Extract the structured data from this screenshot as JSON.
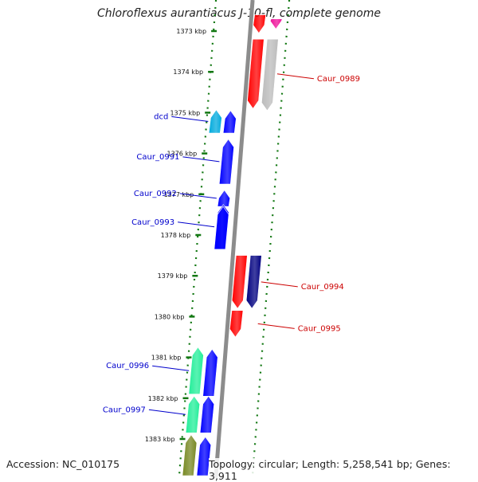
{
  "title": "Chloroflexus aurantiacus J-10-fl, complete genome",
  "footer": {
    "accession": "Accession: NC_010175",
    "stats": "Topology: circular; Length: 5,258,541 bp; Genes: 3,911"
  },
  "colors": {
    "tick": "#117711",
    "ring": "#8c8c8c",
    "label_forward": "#0000cc",
    "label_reverse": "#cc0000"
  },
  "ticks": [
    {
      "label": "1373 kbp",
      "kbp": 1373
    },
    {
      "label": "1374 kbp",
      "kbp": 1374
    },
    {
      "label": "1375 kbp",
      "kbp": 1375
    },
    {
      "label": "1376 kbp",
      "kbp": 1376
    },
    {
      "label": "1377 kbp",
      "kbp": 1377
    },
    {
      "label": "1378 kbp",
      "kbp": 1378
    },
    {
      "label": "1379 kbp",
      "kbp": 1379
    },
    {
      "label": "1380 kbp",
      "kbp": 1380
    },
    {
      "label": "1381 kbp",
      "kbp": 1381
    },
    {
      "label": "1382 kbp",
      "kbp": 1382
    },
    {
      "label": "1383 kbp",
      "kbp": 1383
    }
  ],
  "genes": [
    {
      "name": "",
      "strand": "reverse",
      "color": "#ff0000",
      "start_kbp": 1372.6,
      "end_kbp": 1373.05
    },
    {
      "name": "",
      "strand": "reverse",
      "color": "#ee1199",
      "start_kbp": 1372.7,
      "end_kbp": 1372.95
    },
    {
      "name": "Caur_0989",
      "strand": "reverse",
      "color": "#ff0000",
      "start_kbp": 1373.2,
      "end_kbp": 1374.9
    },
    {
      "name": "",
      "strand": "reverse",
      "color": "#bbbbbb",
      "start_kbp": 1373.2,
      "end_kbp": 1374.95
    },
    {
      "name": "dcd",
      "strand": "forward",
      "color": "#00aadd",
      "start_kbp": 1374.93,
      "end_kbp": 1375.5
    },
    {
      "name": "",
      "strand": "forward",
      "color": "#0000ff",
      "start_kbp": 1374.95,
      "end_kbp": 1375.5
    },
    {
      "name": "Caur_0991",
      "strand": "forward",
      "color": "#0000ff",
      "start_kbp": 1375.65,
      "end_kbp": 1376.75
    },
    {
      "name": "Caur_0992",
      "strand": "forward",
      "color": "#0000ff",
      "start_kbp": 1376.9,
      "end_kbp": 1377.3
    },
    {
      "name": "Caur_0993",
      "strand": "forward",
      "color": "#0000ff",
      "start_kbp": 1377.25,
      "end_kbp": 1378.35
    },
    {
      "name": "",
      "strand": "forward",
      "color": "#0000ff",
      "start_kbp": 1377.3,
      "end_kbp": 1378.35
    },
    {
      "name": "Caur_0994",
      "strand": "reverse",
      "color": "#ff0000",
      "start_kbp": 1378.5,
      "end_kbp": 1379.8
    },
    {
      "name": "",
      "strand": "reverse",
      "color": "#000080",
      "start_kbp": 1378.5,
      "end_kbp": 1379.8
    },
    {
      "name": "Caur_0995",
      "strand": "reverse",
      "color": "#ff0000",
      "start_kbp": 1379.85,
      "end_kbp": 1380.5
    },
    {
      "name": "Caur_0996",
      "strand": "forward",
      "color": "#22ee99",
      "start_kbp": 1380.75,
      "end_kbp": 1381.9
    },
    {
      "name": "",
      "strand": "forward",
      "color": "#0000ff",
      "start_kbp": 1380.8,
      "end_kbp": 1381.95
    },
    {
      "name": "Caur_0997",
      "strand": "forward",
      "color": "#22ee99",
      "start_kbp": 1381.95,
      "end_kbp": 1382.85
    },
    {
      "name": "",
      "strand": "forward",
      "color": "#0000ff",
      "start_kbp": 1381.95,
      "end_kbp": 1382.85
    },
    {
      "name": "",
      "strand": "forward",
      "color": "#778822",
      "start_kbp": 1382.9,
      "end_kbp": 1383.9
    },
    {
      "name": "",
      "strand": "forward",
      "color": "#0000ff",
      "start_kbp": 1382.95,
      "end_kbp": 1383.9
    }
  ]
}
